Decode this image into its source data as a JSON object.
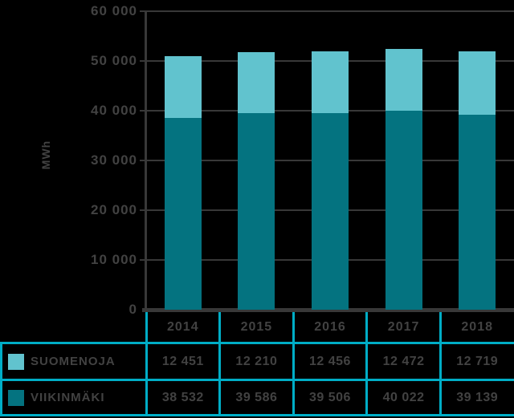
{
  "chart_data": {
    "type": "bar",
    "stacked": true,
    "title": "",
    "ylabel": "MWh",
    "xlabel": "",
    "categories": [
      "2014",
      "2015",
      "2016",
      "2017",
      "2018"
    ],
    "series": [
      {
        "name": "SUOMENOJA",
        "color": "#61c3ce",
        "values": [
          12451,
          12210,
          12456,
          12472,
          12719
        ]
      },
      {
        "name": "VIIKINMÄKI",
        "color": "#047380",
        "values": [
          38532,
          39586,
          39506,
          40022,
          39139
        ]
      }
    ],
    "ylim": [
      0,
      60000
    ],
    "ytick_step": 10000,
    "ytick_labels": [
      "60 000",
      "50 000",
      "40 000",
      "30 000",
      "20 000",
      "10 000",
      "0"
    ],
    "grid": true,
    "legend_position": "bottom-table"
  },
  "table": {
    "header": [
      "2014",
      "2015",
      "2016",
      "2017",
      "2018"
    ],
    "rows": [
      {
        "label": "SUOMENOJA",
        "swatch_color": "#61c3ce",
        "values": [
          "12 451",
          "12 210",
          "12 456",
          "12 472",
          "12 719"
        ]
      },
      {
        "label": "VIIKINMÄKI",
        "swatch_color": "#047380",
        "values": [
          "38 532",
          "39 586",
          "39 506",
          "40 022",
          "39 139"
        ]
      }
    ]
  },
  "colors": {
    "background": "#000000",
    "axis": "#383838",
    "text": "#424242",
    "table_border": "#00adc6"
  }
}
